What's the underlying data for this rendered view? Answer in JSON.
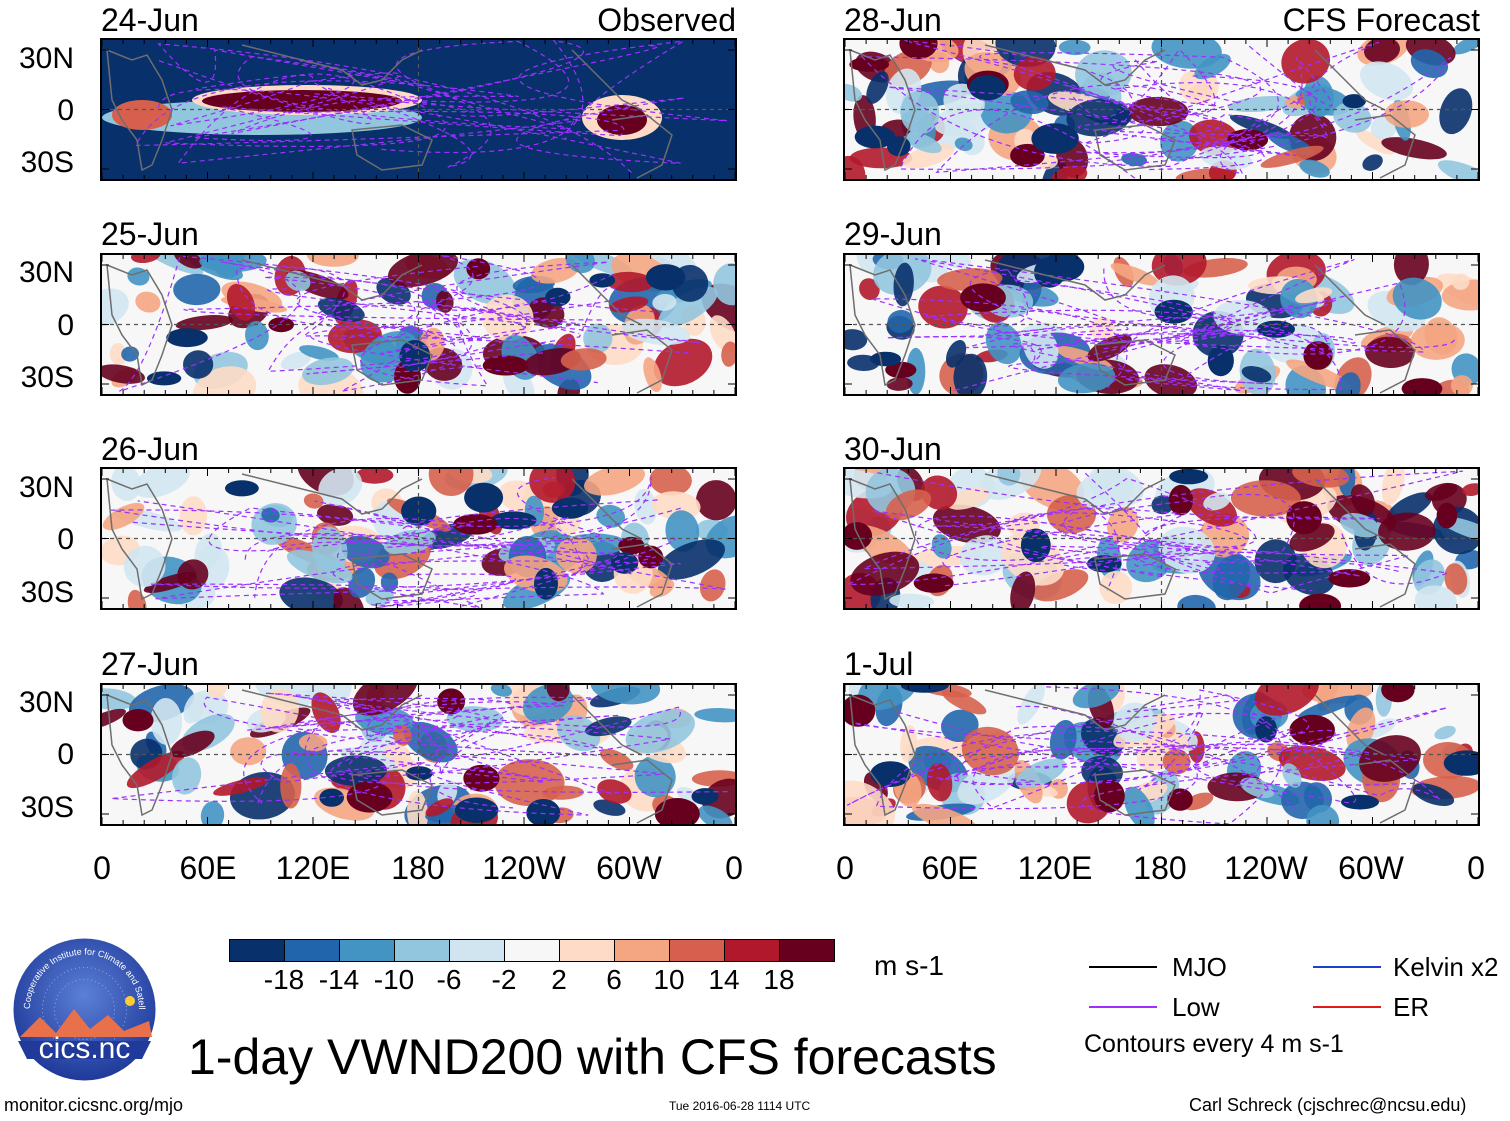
{
  "title": "1-day VWND200 with CFS forecasts",
  "chart_data": {
    "type": "heatmap",
    "title": "1-day VWND200 with CFS forecasts",
    "variable": "VWND200",
    "units": "m s-1",
    "panels": [
      {
        "date": "24-Jun",
        "label": "Observed",
        "column": "left",
        "row": 0
      },
      {
        "date": "25-Jun",
        "label": "",
        "column": "left",
        "row": 1
      },
      {
        "date": "26-Jun",
        "label": "",
        "column": "left",
        "row": 2
      },
      {
        "date": "27-Jun",
        "label": "",
        "column": "left",
        "row": 3
      },
      {
        "date": "28-Jun",
        "label": "CFS Forecast",
        "column": "right",
        "row": 0
      },
      {
        "date": "29-Jun",
        "label": "",
        "column": "right",
        "row": 1
      },
      {
        "date": "30-Jun",
        "label": "",
        "column": "right",
        "row": 2
      },
      {
        "date": "1-Jul",
        "label": "",
        "column": "right",
        "row": 3
      }
    ],
    "lat_ticks": [
      "30N",
      "0",
      "30S"
    ],
    "lon_ticks": [
      "0",
      "60E",
      "120E",
      "180",
      "120W",
      "60W",
      "0"
    ],
    "colorbar": {
      "ticks": [
        "-18",
        "-14",
        "-10",
        "-6",
        "-2",
        "2",
        "6",
        "10",
        "14",
        "18"
      ],
      "colors": [
        "#08306b",
        "#2166ac",
        "#4393c3",
        "#92c5de",
        "#d1e5f0",
        "#f7f7f7",
        "#fddbc7",
        "#f4a582",
        "#d6604d",
        "#b2182b",
        "#67001f"
      ]
    },
    "legend": [
      {
        "label": "MJO",
        "color": "#000000"
      },
      {
        "label": "Kelvin x2",
        "color": "#1f3fcf"
      },
      {
        "label": "Low",
        "color": "#9b30ff"
      },
      {
        "label": "ER",
        "color": "#e31a1c"
      }
    ],
    "contour_note": "Contours every 4 m s-1"
  },
  "logo": {
    "text": "cics.nc",
    "ring_text": "Cooperative Institute for Climate and Satellites"
  },
  "footer": {
    "url": "monitor.cicsnc.org/mjo",
    "timestamp": "Tue 2016-06-28 1114 UTC",
    "author": "Carl Schreck (cjschrec@ncsu.edu)"
  }
}
